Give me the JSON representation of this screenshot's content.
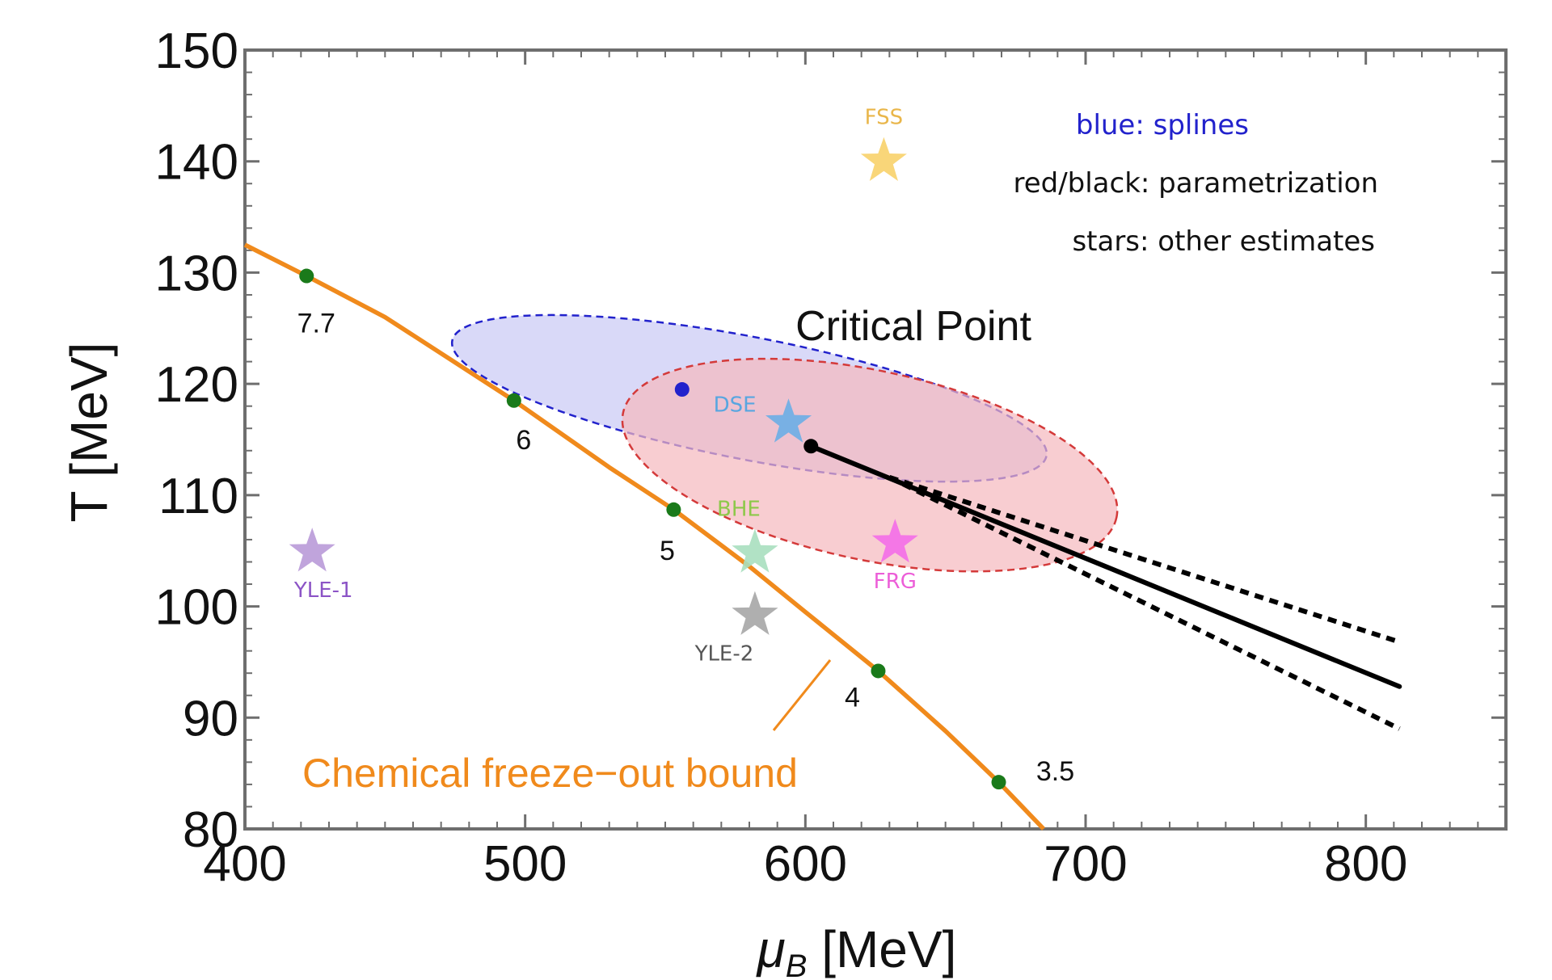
{
  "chart_data": {
    "type": "scatter",
    "xlabel_main": "μ",
    "xlabel_sub": "B",
    "xlabel_unit": " [MeV]",
    "ylabel": "T [MeV]",
    "xlim": [
      400,
      850
    ],
    "ylim": [
      80,
      150
    ],
    "x_ticks": [
      400,
      500,
      600,
      700,
      800
    ],
    "y_ticks": [
      80,
      90,
      100,
      110,
      120,
      130,
      140,
      150
    ],
    "x_tick_labels": [
      "400",
      "500",
      "600",
      "700",
      "800"
    ],
    "y_tick_labels": [
      "80",
      "90",
      "100",
      "110",
      "120",
      "130",
      "140",
      "150"
    ],
    "colors": {
      "freeze": "#f08a1c",
      "freeze_points": "#1a7a1a",
      "spline": "#2222cc",
      "spline_fill": "#c9c9f5",
      "param": "#d43a3a",
      "param_fill": "#f5b8be",
      "line": "#000000"
    },
    "freeze_out_curve": {
      "label": "Chemical freeze−out bound",
      "x": [
        400,
        422,
        450,
        496,
        530,
        553,
        580,
        600,
        626,
        650,
        669,
        685
      ],
      "y": [
        132.5,
        129.7,
        126,
        118.5,
        112.5,
        108.7,
        103.6,
        99.5,
        94.2,
        88.8,
        84.2,
        80
      ]
    },
    "freeze_out_points": [
      {
        "label": "7.7",
        "x": 422,
        "y": 129.7
      },
      {
        "label": "6",
        "x": 496,
        "y": 118.5
      },
      {
        "label": "5",
        "x": 553,
        "y": 108.7
      },
      {
        "label": "4",
        "x": 626,
        "y": 94.2
      },
      {
        "label": "3.5",
        "x": 669,
        "y": 84.2
      }
    ],
    "critical_point_label": "Critical Point",
    "spline_point": {
      "x": 556,
      "y": 119.5
    },
    "spline_ellipse": {
      "cx": 580,
      "cy": 118.7,
      "rx": 108,
      "ry": 5.5,
      "angle_deg": 11
    },
    "param_ellipse": {
      "cx": 623,
      "cy": 112.7,
      "rx": 90,
      "ry": 8.5,
      "angle_deg": 12
    },
    "param_line": {
      "start": {
        "x": 602,
        "y": 114.4
      },
      "end": {
        "x": 812,
        "y": 92.8
      },
      "upper_end": {
        "x": 812,
        "y": 96.8
      },
      "lower_end": {
        "x": 812,
        "y": 89.0
      },
      "band_start": {
        "x": 630,
        "y": 111.6
      }
    },
    "estimates": [
      {
        "label": "FSS",
        "x": 628,
        "y": 140,
        "color": "#f8d26a",
        "label_color": "#e9b64a",
        "label_pos": "above"
      },
      {
        "label": "DSE",
        "x": 594,
        "y": 116.5,
        "color": "#6aaee6",
        "label_color": "#58a6e0",
        "label_pos": "left"
      },
      {
        "label": "BHE",
        "x": 582,
        "y": 104.8,
        "color": "#a8dfbf",
        "label_color": "#8dc84a",
        "label_pos": "above"
      },
      {
        "label": "FRG",
        "x": 632,
        "y": 105.7,
        "color": "#f36ee8",
        "label_color": "#ec5ed8",
        "label_pos": "below"
      },
      {
        "label": "YLE-1",
        "x": 424,
        "y": 104.9,
        "color": "#b99ad8",
        "label_color": "#8c54c6",
        "label_pos": "below"
      },
      {
        "label": "YLE-2",
        "x": 582,
        "y": 99.2,
        "color": "#a6a6a6",
        "label_color": "#555555",
        "label_pos": "below"
      }
    ],
    "legend": [
      {
        "text": "blue: splines",
        "color": "#2222cc"
      },
      {
        "text": "red/black: parametrization",
        "color": "#111111"
      },
      {
        "text": "stars: other estimates",
        "color": "#111111"
      }
    ]
  }
}
